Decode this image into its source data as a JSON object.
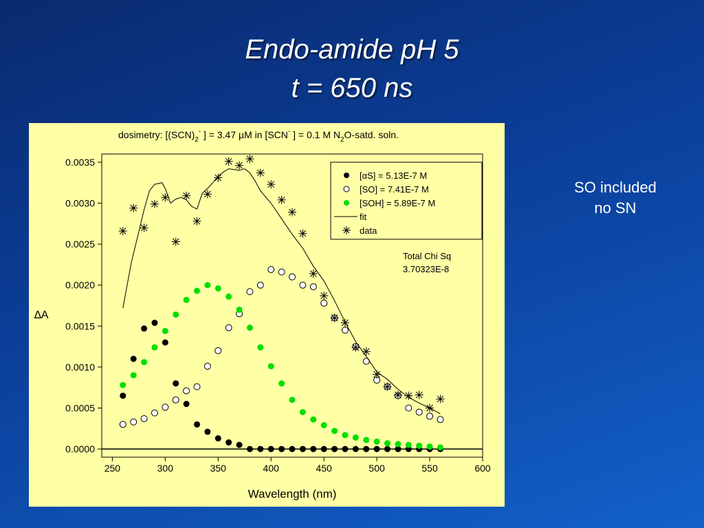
{
  "slide": {
    "title_line1": "Endo-amide pH 5",
    "title_line2": "t = 650 ns",
    "note_line1": "SO included",
    "note_line2": "no SN"
  },
  "colors": {
    "panel_bg": "#ffffa6",
    "green": "#00e000",
    "black": "#000000"
  },
  "chart_data": {
    "type": "scatter",
    "title": "dosimetry: [(SCN)2- ] = 3.47 µM in [SCN- ] = 0.1 M N2O-satd. soln.",
    "title_parts": {
      "a": "dosimetry: [(SCN)",
      "a_sub": "2",
      "a_sup": "-",
      "b": " ] = 3.47 ",
      "mu": "µ",
      "c": "M in [SCN",
      "c_sup": "-",
      "d": " ] = 0.1 M N",
      "d_sub": "2",
      "e": "O-satd. soln."
    },
    "xlabel": "Wavelength (nm)",
    "ylabel": "∆A",
    "xlim": [
      240,
      600
    ],
    "ylim": [
      -0.0001,
      0.0036
    ],
    "xticks": [
      250,
      300,
      350,
      400,
      450,
      500,
      550,
      600
    ],
    "yticks": [
      "0.0000",
      "0.0005",
      "0.0010",
      "0.0015",
      "0.0020",
      "0.0025",
      "0.0030",
      "0.0035"
    ],
    "grid": false,
    "legend_position": "top-right",
    "annotation": {
      "line1": "Total Chi Sq",
      "line2": "3.70323E-8"
    },
    "series": [
      {
        "name": "[αS] = 5.13E-7 M",
        "legend_parts": {
          "pre": "[",
          "greek": "α",
          "post": "S] = 5.13E-7 M"
        },
        "marker": "filled-circle",
        "color": "#000000",
        "x": [
          260,
          270,
          280,
          290,
          300,
          310,
          320,
          330,
          340,
          350,
          360,
          370,
          380,
          390,
          400,
          410,
          420,
          430,
          440,
          450,
          460,
          470,
          480,
          490,
          500,
          510,
          520,
          530,
          540,
          550,
          560
        ],
        "y": [
          0.00065,
          0.0011,
          0.00147,
          0.00154,
          0.0013,
          0.0008,
          0.00055,
          0.0003,
          0.00021,
          0.00013,
          8e-05,
          5e-05,
          0.0,
          0.0,
          0.0,
          0.0,
          0.0,
          0.0,
          0.0,
          0.0,
          0.0,
          0.0,
          0.0,
          0.0,
          0.0,
          0.0,
          0.0,
          0.0,
          0.0,
          0.0,
          0.0
        ]
      },
      {
        "name": "[SO] = 7.41E-7 M",
        "marker": "open-circle",
        "color": "#000000",
        "x": [
          260,
          270,
          280,
          290,
          300,
          310,
          320,
          330,
          340,
          350,
          360,
          370,
          380,
          390,
          400,
          410,
          420,
          430,
          440,
          450,
          460,
          470,
          480,
          490,
          500,
          510,
          520,
          530,
          540,
          550,
          560
        ],
        "y": [
          0.0003,
          0.00033,
          0.00037,
          0.00044,
          0.00051,
          0.0006,
          0.00071,
          0.00076,
          0.00101,
          0.0012,
          0.00148,
          0.00165,
          0.00192,
          0.002,
          0.00219,
          0.00216,
          0.0021,
          0.002,
          0.00198,
          0.00178,
          0.0016,
          0.00145,
          0.00125,
          0.00107,
          0.00084,
          0.00076,
          0.00065,
          0.0005,
          0.00045,
          0.0004,
          0.00036
        ]
      },
      {
        "name": "[SOH] = 5.89E-7 M",
        "marker": "filled-circle",
        "color": "#00e000",
        "x": [
          260,
          270,
          280,
          290,
          300,
          310,
          320,
          330,
          340,
          350,
          360,
          370,
          380,
          390,
          400,
          410,
          420,
          430,
          440,
          450,
          460,
          470,
          480,
          490,
          500,
          510,
          520,
          530,
          540,
          550,
          560
        ],
        "y": [
          0.00078,
          0.0009,
          0.00106,
          0.00124,
          0.00144,
          0.00164,
          0.00182,
          0.00193,
          0.002,
          0.00196,
          0.00186,
          0.0017,
          0.00148,
          0.00124,
          0.00101,
          0.0008,
          0.0006,
          0.00045,
          0.00036,
          0.00029,
          0.00022,
          0.00017,
          0.00014,
          0.00011,
          9e-05,
          7e-05,
          6e-05,
          5e-05,
          4e-05,
          3e-05,
          2e-05
        ]
      },
      {
        "name": "fit",
        "marker": "line",
        "color": "#000000",
        "x": [
          260,
          268,
          275,
          280,
          285,
          290,
          297,
          300,
          305,
          310,
          315,
          320,
          325,
          330,
          335,
          340,
          345,
          350,
          355,
          360,
          365,
          370,
          375,
          380,
          385,
          390,
          400,
          410,
          420,
          430,
          440,
          450,
          460,
          470,
          480,
          490,
          500,
          510,
          520,
          530,
          540,
          550,
          560
        ],
        "y": [
          0.00172,
          0.00228,
          0.00265,
          0.00292,
          0.00315,
          0.00323,
          0.00325,
          0.00318,
          0.003,
          0.00305,
          0.00307,
          0.00304,
          0.00296,
          0.00293,
          0.00312,
          0.00318,
          0.00325,
          0.00333,
          0.00338,
          0.00342,
          0.00341,
          0.0034,
          0.00342,
          0.00337,
          0.00327,
          0.00315,
          0.003,
          0.00281,
          0.00262,
          0.00245,
          0.00223,
          0.00205,
          0.00181,
          0.00155,
          0.00131,
          0.00113,
          0.00094,
          0.00085,
          0.00073,
          0.00063,
          0.00056,
          0.0005,
          0.00043
        ]
      },
      {
        "name": "data",
        "marker": "asterisk",
        "color": "#000000",
        "x": [
          260,
          270,
          280,
          290,
          300,
          310,
          320,
          330,
          340,
          350,
          360,
          370,
          380,
          390,
          400,
          410,
          420,
          430,
          440,
          450,
          460,
          470,
          480,
          490,
          500,
          510,
          520,
          530,
          540,
          550,
          560
        ],
        "y": [
          0.00266,
          0.00294,
          0.0027,
          0.00299,
          0.00307,
          0.00253,
          0.00309,
          0.00278,
          0.00311,
          0.00331,
          0.00351,
          0.00346,
          0.00354,
          0.00337,
          0.00323,
          0.00304,
          0.00289,
          0.00263,
          0.00214,
          0.00187,
          0.0016,
          0.00154,
          0.00124,
          0.00119,
          0.00091,
          0.00076,
          0.00066,
          0.00065,
          0.00066,
          0.0005,
          0.00061
        ]
      }
    ]
  }
}
